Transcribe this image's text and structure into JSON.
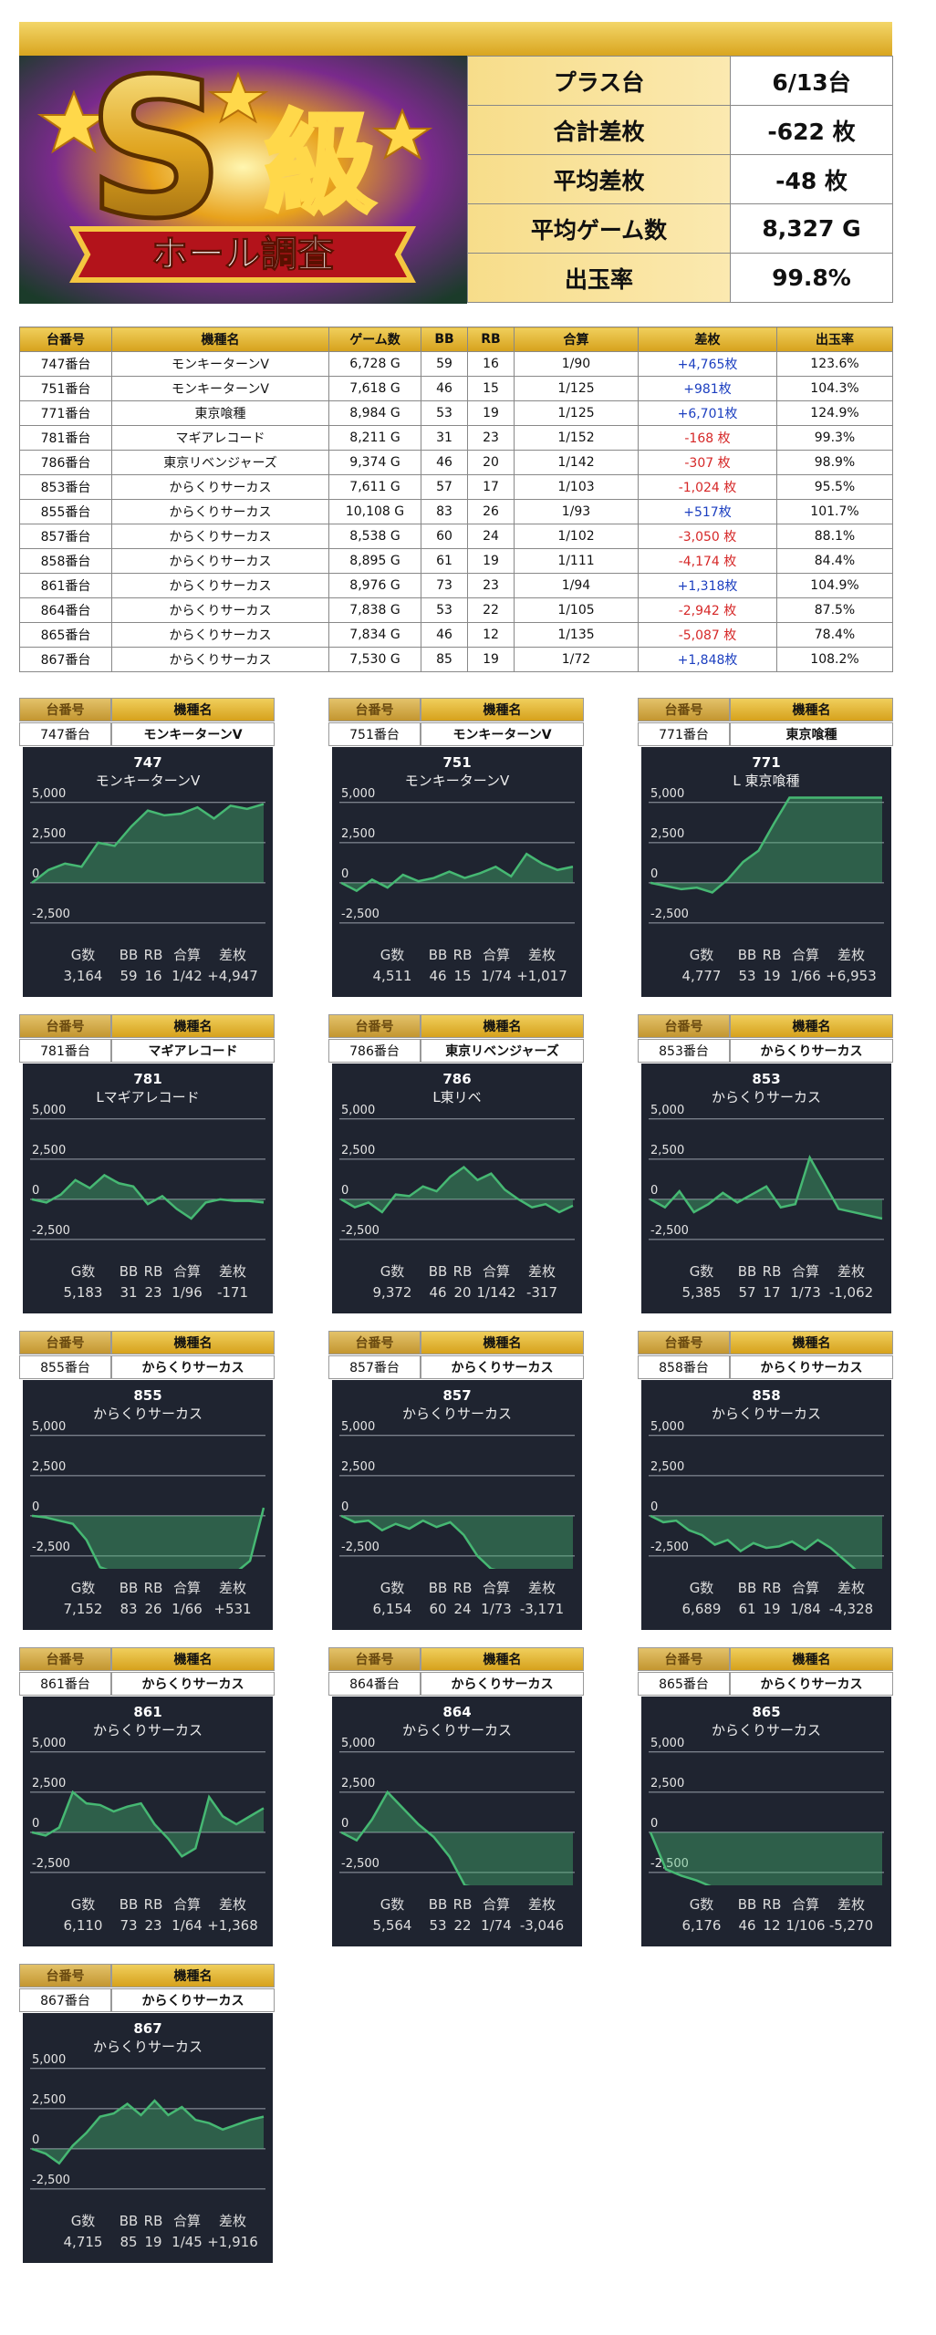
{
  "logo": {
    "letter": "S",
    "kanji": "級",
    "ribbon": "ホール調査"
  },
  "summary": {
    "rows": [
      [
        "プラス台",
        "6/13台"
      ],
      [
        "合計差枚",
        "-622 枚"
      ],
      [
        "平均差枚",
        "-48 枚"
      ],
      [
        "平均ゲーム数",
        "8,327 G"
      ],
      [
        "出玉率",
        "99.8%"
      ]
    ]
  },
  "table": {
    "positive_color": "#1c3fc0",
    "negative_color": "#d62828",
    "columns": [
      "台番号",
      "機種名",
      "ゲーム数",
      "BB",
      "RB",
      "合算",
      "差枚",
      "出玉率"
    ],
    "rows": [
      [
        "747番台",
        "モンキーターンV",
        "6,728 G",
        "59",
        "16",
        "1/90",
        "+4,765枚",
        "123.6%"
      ],
      [
        "751番台",
        "モンキーターンV",
        "7,618 G",
        "46",
        "15",
        "1/125",
        "+981枚",
        "104.3%"
      ],
      [
        "771番台",
        "東京喰種",
        "8,984 G",
        "53",
        "19",
        "1/125",
        "+6,701枚",
        "124.9%"
      ],
      [
        "781番台",
        "マギアレコード",
        "8,211 G",
        "31",
        "23",
        "1/152",
        "-168 枚",
        "99.3%"
      ],
      [
        "786番台",
        "東京リベンジャーズ",
        "9,374 G",
        "46",
        "20",
        "1/142",
        "-307 枚",
        "98.9%"
      ],
      [
        "853番台",
        "からくりサーカス",
        "7,611 G",
        "57",
        "17",
        "1/103",
        "-1,024 枚",
        "95.5%"
      ],
      [
        "855番台",
        "からくりサーカス",
        "10,108 G",
        "83",
        "26",
        "1/93",
        "+517枚",
        "101.7%"
      ],
      [
        "857番台",
        "からくりサーカス",
        "8,538 G",
        "60",
        "24",
        "1/102",
        "-3,050 枚",
        "88.1%"
      ],
      [
        "858番台",
        "からくりサーカス",
        "8,895 G",
        "61",
        "19",
        "1/111",
        "-4,174 枚",
        "84.4%"
      ],
      [
        "861番台",
        "からくりサーカス",
        "8,976 G",
        "73",
        "23",
        "1/94",
        "+1,318枚",
        "104.9%"
      ],
      [
        "864番台",
        "からくりサーカス",
        "7,838 G",
        "53",
        "22",
        "1/105",
        "-2,942 枚",
        "87.5%"
      ],
      [
        "865番台",
        "からくりサーカス",
        "7,834 G",
        "46",
        "12",
        "1/135",
        "-5,087 枚",
        "78.4%"
      ],
      [
        "867番台",
        "からくりサーカス",
        "7,530 G",
        "85",
        "19",
        "1/72",
        "+1,848枚",
        "108.2%"
      ]
    ]
  },
  "card_labels": [
    "台番号",
    "機種名"
  ],
  "stat_labels": [
    "G数",
    "BB",
    "RB",
    "合算",
    "差枚"
  ],
  "chart_data": [
    {
      "type": "area",
      "machine_no": "747番台",
      "machine": "モンキーターンV",
      "title": "747",
      "subtitle": "モンキーターンV",
      "stats": [
        "3,164",
        "59",
        "16",
        "1/42",
        "+4,947"
      ],
      "values": [
        0,
        800,
        1200,
        1000,
        2500,
        2300,
        3500,
        4500,
        4200,
        4300,
        4700,
        4000,
        4800,
        4600,
        4900
      ],
      "ylim": [
        -3300,
        5500
      ],
      "yticks": [
        {
          "value": 5000,
          "label": "5,000"
        },
        {
          "value": 2500,
          "label": "2,500"
        },
        0,
        {
          "value": -2500,
          "label": "-2,500"
        }
      ],
      "color": "#46b873",
      "grid": true
    },
    {
      "type": "area",
      "machine_no": "751番台",
      "machine": "モンキーターンV",
      "title": "751",
      "subtitle": "モンキーターンV",
      "stats": [
        "4,511",
        "46",
        "15",
        "1/74",
        "+1,017"
      ],
      "values": [
        0,
        -500,
        200,
        -300,
        500,
        100,
        300,
        700,
        300,
        600,
        1000,
        400,
        1800,
        1200,
        800,
        1000
      ],
      "ylim": [
        -3300,
        5500
      ],
      "yticks": [
        {
          "value": 5000,
          "label": "5,000"
        },
        {
          "value": 2500,
          "label": "2,500"
        },
        0,
        {
          "value": -2500,
          "label": "-2,500"
        }
      ],
      "color": "#46b873",
      "grid": true
    },
    {
      "type": "area",
      "machine_no": "771番台",
      "machine": "東京喰種",
      "title": "771",
      "subtitle": "L 東京喰種",
      "stats": [
        "4,777",
        "53",
        "19",
        "1/66",
        "+6,953"
      ],
      "values": [
        0,
        -200,
        -400,
        -300,
        -600,
        200,
        1300,
        2000,
        3700,
        5300,
        5300,
        5300,
        5300,
        5300,
        5300,
        5300
      ],
      "ylim": [
        -3300,
        5500
      ],
      "yticks": [
        {
          "value": 5000,
          "label": "5,000"
        },
        {
          "value": 2500,
          "label": "2,500"
        },
        0,
        {
          "value": -2500,
          "label": "-2,500"
        }
      ],
      "color": "#46b873",
      "grid": true
    },
    {
      "type": "area",
      "machine_no": "781番台",
      "machine": "マギアレコード",
      "title": "781",
      "subtitle": "Lマギアレコード",
      "stats": [
        "5,183",
        "31",
        "23",
        "1/96",
        "-171"
      ],
      "values": [
        0,
        -200,
        300,
        1200,
        700,
        1500,
        1000,
        800,
        -300,
        200,
        -600,
        -1200,
        -200,
        0,
        -100,
        -100,
        -200
      ],
      "ylim": [
        -3300,
        5500
      ],
      "yticks": [
        {
          "value": 5000,
          "label": "5,000"
        },
        {
          "value": 2500,
          "label": "2,500"
        },
        0,
        {
          "value": -2500,
          "label": "-2,500"
        }
      ],
      "color": "#46b873",
      "grid": true
    },
    {
      "type": "area",
      "machine_no": "786番台",
      "machine": "東京リベンジャーズ",
      "title": "786",
      "subtitle": "L東リベ",
      "stats": [
        "9,372",
        "46",
        "20",
        "1/142",
        "-317"
      ],
      "values": [
        0,
        -500,
        -200,
        -800,
        300,
        200,
        800,
        500,
        1400,
        2000,
        1200,
        1600,
        600,
        0,
        -500,
        -300,
        -800,
        -400
      ],
      "ylim": [
        -3300,
        5500
      ],
      "yticks": [
        {
          "value": 5000,
          "label": "5,000"
        },
        {
          "value": 2500,
          "label": "2,500"
        },
        0,
        {
          "value": -2500,
          "label": "-2,500"
        }
      ],
      "color": "#46b873",
      "grid": true
    },
    {
      "type": "area",
      "machine_no": "853番台",
      "machine": "からくりサーカス",
      "title": "853",
      "subtitle": "からくりサーカス",
      "stats": [
        "5,385",
        "57",
        "17",
        "1/73",
        "-1,062"
      ],
      "values": [
        0,
        -500,
        500,
        -800,
        -300,
        400,
        -200,
        300,
        800,
        -500,
        -300,
        2600,
        1000,
        -600,
        -800,
        -1000,
        -1200
      ],
      "ylim": [
        -3300,
        5500
      ],
      "yticks": [
        {
          "value": 5000,
          "label": "5,000"
        },
        {
          "value": 2500,
          "label": "2,500"
        },
        0,
        {
          "value": -2500,
          "label": "-2,500"
        }
      ],
      "color": "#46b873",
      "grid": true
    },
    {
      "type": "area",
      "machine_no": "855番台",
      "machine": "からくりサーカス",
      "title": "855",
      "subtitle": "からくりサーカス",
      "stats": [
        "7,152",
        "83",
        "26",
        "1/66",
        "+531"
      ],
      "values": [
        0,
        -100,
        -300,
        -500,
        -1500,
        -3200,
        -3500,
        -3600,
        -3600,
        -3600,
        -3600,
        -3600,
        -3600,
        -3600,
        -3600,
        -3500,
        -2800,
        500
      ],
      "ylim": [
        -3300,
        5500
      ],
      "yticks": [
        {
          "value": 5000,
          "label": "5,000"
        },
        {
          "value": 2500,
          "label": "2,500"
        },
        0,
        {
          "value": -2500,
          "label": "-2,500"
        }
      ],
      "color": "#46b873",
      "grid": true
    },
    {
      "type": "area",
      "machine_no": "857番台",
      "machine": "からくりサーカス",
      "title": "857",
      "subtitle": "からくりサーカス",
      "stats": [
        "6,154",
        "60",
        "24",
        "1/73",
        "-3,171"
      ],
      "values": [
        0,
        -400,
        -300,
        -900,
        -500,
        -800,
        -300,
        -700,
        -400,
        -1200,
        -2500,
        -3300,
        -3500,
        -3500,
        -3500,
        -3500,
        -3500,
        -3500
      ],
      "ylim": [
        -3300,
        5500
      ],
      "yticks": [
        {
          "value": 5000,
          "label": "5,000"
        },
        {
          "value": 2500,
          "label": "2,500"
        },
        0,
        {
          "value": -2500,
          "label": "-2,500"
        }
      ],
      "color": "#46b873",
      "grid": true
    },
    {
      "type": "area",
      "machine_no": "858番台",
      "machine": "からくりサーカス",
      "title": "858",
      "subtitle": "からくりサーカス",
      "stats": [
        "6,689",
        "61",
        "19",
        "1/84",
        "-4,328"
      ],
      "values": [
        0,
        -400,
        -300,
        -900,
        -1200,
        -1800,
        -1500,
        -2200,
        -1700,
        -2000,
        -1900,
        -1600,
        -2100,
        -1500,
        -2000,
        -2700,
        -3400,
        -3600,
        -3600
      ],
      "ylim": [
        -3300,
        5500
      ],
      "yticks": [
        {
          "value": 5000,
          "label": "5,000"
        },
        {
          "value": 2500,
          "label": "2,500"
        },
        0,
        {
          "value": -2500,
          "label": "-2,500"
        }
      ],
      "color": "#46b873",
      "grid": true
    },
    {
      "type": "area",
      "machine_no": "861番台",
      "machine": "からくりサーカス",
      "title": "861",
      "subtitle": "からくりサーカス",
      "stats": [
        "6,110",
        "73",
        "23",
        "1/64",
        "+1,368"
      ],
      "values": [
        0,
        -200,
        300,
        2500,
        1800,
        1700,
        1300,
        1600,
        1800,
        500,
        -400,
        -1500,
        -1000,
        2200,
        1000,
        500,
        1000,
        1500
      ],
      "ylim": [
        -3300,
        5500
      ],
      "yticks": [
        {
          "value": 5000,
          "label": "5,000"
        },
        {
          "value": 2500,
          "label": "2,500"
        },
        0,
        {
          "value": -2500,
          "label": "-2,500"
        }
      ],
      "color": "#46b873",
      "grid": true
    },
    {
      "type": "area",
      "machine_no": "864番台",
      "machine": "からくりサーカス",
      "title": "864",
      "subtitle": "からくりサーカス",
      "stats": [
        "5,564",
        "53",
        "22",
        "1/74",
        "-3,046"
      ],
      "values": [
        0,
        -500,
        800,
        2500,
        1500,
        500,
        -300,
        -1500,
        -3300,
        -3500,
        -3500,
        -3500,
        -3500,
        -3500,
        -3500,
        -3500
      ],
      "ylim": [
        -3300,
        5500
      ],
      "yticks": [
        {
          "value": 5000,
          "label": "5,000"
        },
        {
          "value": 2500,
          "label": "2,500"
        },
        0,
        {
          "value": -2500,
          "label": "-2,500"
        }
      ],
      "color": "#46b873",
      "grid": true
    },
    {
      "type": "area",
      "machine_no": "865番台",
      "machine": "からくりサーカス",
      "title": "865",
      "subtitle": "からくりサーカス",
      "stats": [
        "6,176",
        "46",
        "12",
        "1/106",
        "-5,270"
      ],
      "values": [
        0,
        -2300,
        -2700,
        -3000,
        -3400,
        -3600,
        -3600,
        -3600,
        -3600,
        -3600,
        -3600,
        -3600,
        -3600,
        -3600,
        -3600,
        -3600
      ],
      "ylim": [
        -3300,
        5500
      ],
      "yticks": [
        {
          "value": 5000,
          "label": "5,000"
        },
        {
          "value": 2500,
          "label": "2,500"
        },
        0,
        {
          "value": -2500,
          "label": "-2,500"
        }
      ],
      "color": "#46b873",
      "grid": true
    },
    {
      "type": "area",
      "machine_no": "867番台",
      "machine": "からくりサーカス",
      "title": "867",
      "subtitle": "からくりサーカス",
      "stats": [
        "4,715",
        "85",
        "19",
        "1/45",
        "+1,916"
      ],
      "values": [
        0,
        -300,
        -900,
        200,
        1000,
        2000,
        2200,
        2800,
        2100,
        3000,
        2100,
        2600,
        1800,
        1600,
        1200,
        1500,
        1800,
        2000
      ],
      "ylim": [
        -3300,
        5500
      ],
      "yticks": [
        {
          "value": 5000,
          "label": "5,000"
        },
        {
          "value": 2500,
          "label": "2,500"
        },
        0,
        {
          "value": -2500,
          "label": "-2,500"
        }
      ],
      "color": "#46b873",
      "grid": true
    }
  ]
}
